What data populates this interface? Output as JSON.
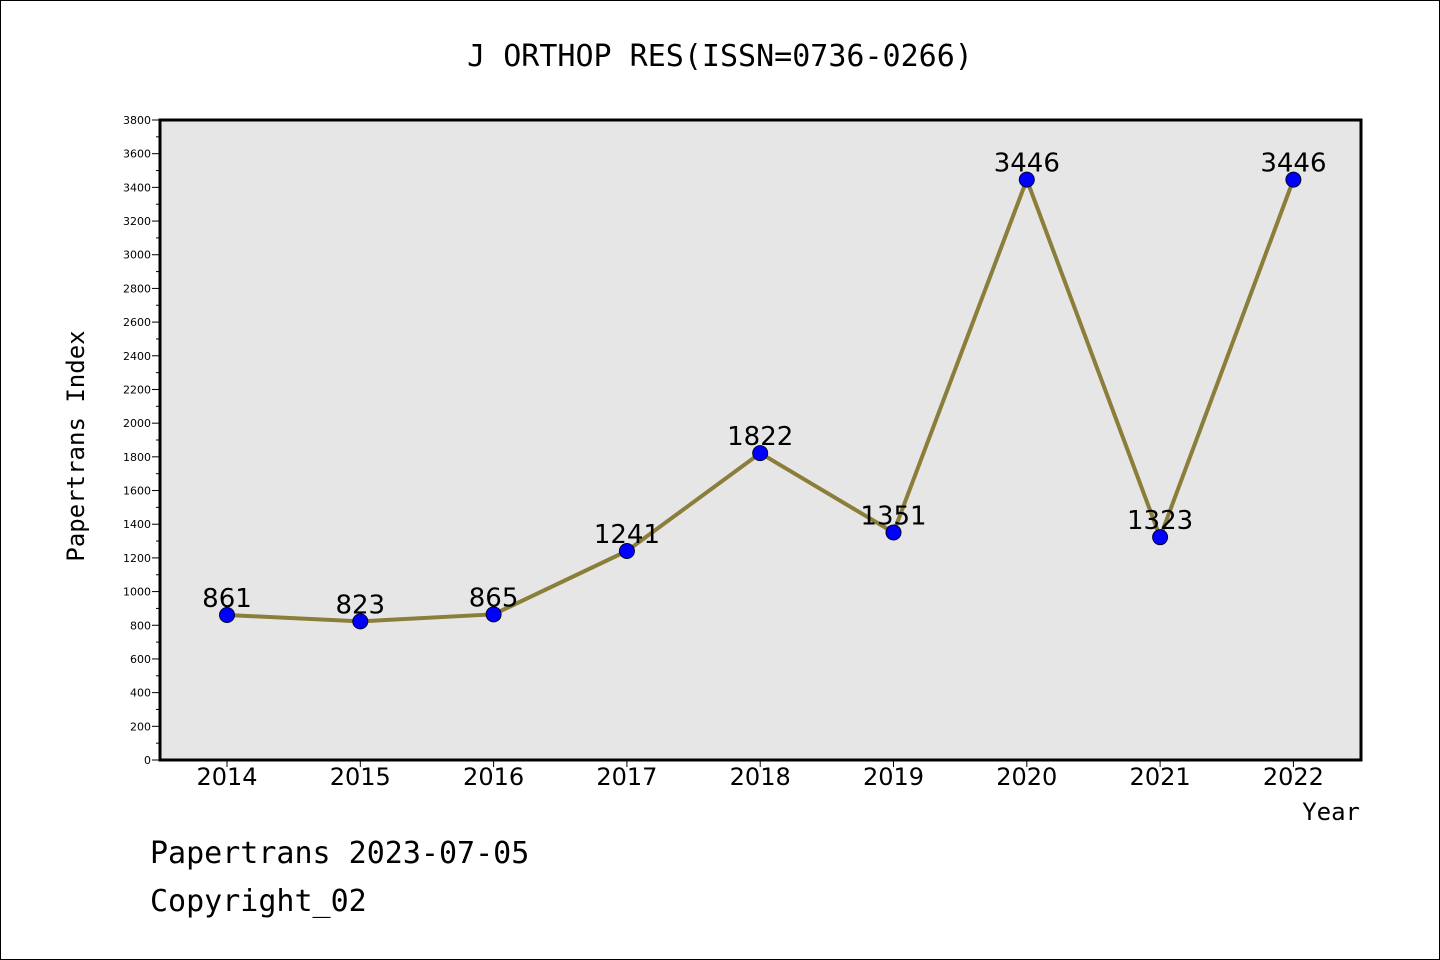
{
  "chart_data": {
    "type": "line",
    "title": "J ORTHOP RES(ISSN=0736-0266)",
    "xlabel": "Year",
    "ylabel": "Papertrans Index",
    "categories": [
      "2014",
      "2015",
      "2016",
      "2017",
      "2018",
      "2019",
      "2020",
      "2021",
      "2022"
    ],
    "values": [
      861,
      823,
      865,
      1241,
      1822,
      1351,
      3446,
      1323,
      3446
    ],
    "data_labels": [
      "861",
      "823",
      "865",
      "1241",
      "1822",
      "1351",
      "3446",
      "1323",
      "3446"
    ],
    "ylim": [
      0,
      3800
    ],
    "yticks": [
      0,
      200,
      400,
      600,
      800,
      1000,
      1200,
      1400,
      1600,
      1800,
      2000,
      2200,
      2400,
      2600,
      2800,
      3000,
      3200,
      3400,
      3600,
      3800
    ],
    "grid": false,
    "legend": "none",
    "colors": {
      "line": "#8b7d3a",
      "marker": "#0000ff",
      "plot_background": "#e6e6e6"
    }
  },
  "footer": {
    "date": "Papertrans 2023-07-05",
    "copyright": "Copyright_02"
  }
}
